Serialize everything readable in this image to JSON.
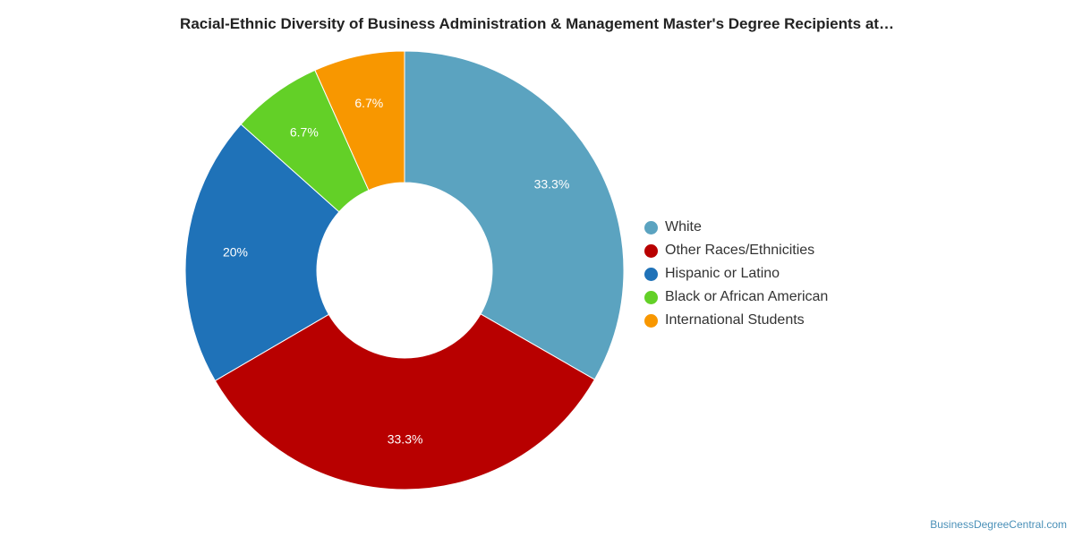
{
  "chart_data": {
    "type": "pie",
    "title": "Racial-Ethnic Diversity of Business Administration & Management Master's Degree Recipients at…",
    "legend_position": "right",
    "hole": true,
    "categories": [
      "White",
      "Other Races/Ethnicities",
      "Hispanic or Latino",
      "Black or African American",
      "International Students"
    ],
    "values": [
      33.3,
      33.3,
      20,
      6.7,
      6.7
    ],
    "data_labels": [
      "33.3%",
      "33.3%",
      "20%",
      "6.7%",
      "6.7%"
    ],
    "colors": [
      "#5ba3c0",
      "#b80000",
      "#1f72b8",
      "#63d027",
      "#f89700"
    ]
  },
  "source": "BusinessDegreeCentral.com"
}
